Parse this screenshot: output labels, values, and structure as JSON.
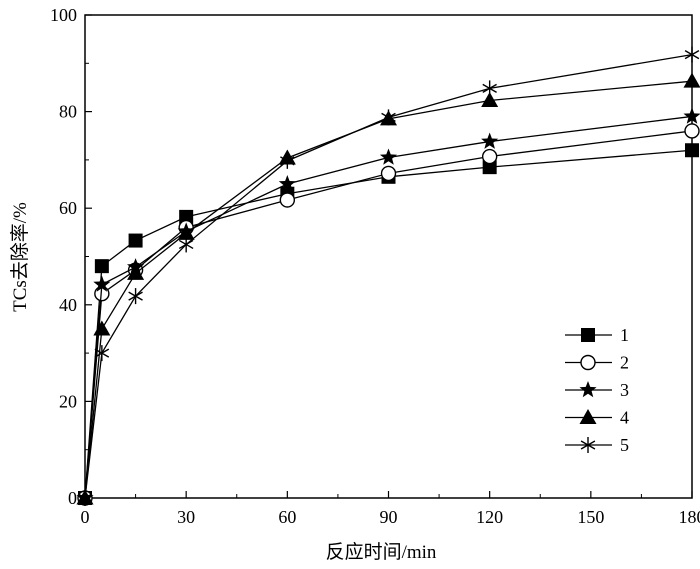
{
  "chart_data": {
    "type": "line",
    "xlabel": "反应时间/min",
    "ylabel": "TCs去除率/%",
    "xlim": [
      0,
      180
    ],
    "ylim": [
      0,
      100
    ],
    "xticks": [
      0,
      30,
      60,
      90,
      120,
      150,
      180
    ],
    "yticks": [
      0,
      20,
      40,
      60,
      80,
      100
    ],
    "grid": false,
    "legend_position": "lower-right",
    "series": [
      {
        "name": "1",
        "marker": "filled-square",
        "x": [
          0,
          5,
          15,
          30,
          60,
          90,
          120,
          180
        ],
        "y": [
          0,
          48,
          53.3,
          58.2,
          63,
          66.5,
          68.5,
          72
        ]
      },
      {
        "name": "2",
        "marker": "open-circle",
        "x": [
          0,
          5,
          15,
          30,
          60,
          90,
          120,
          180
        ],
        "y": [
          0,
          42.3,
          47.2,
          56,
          61.7,
          67.2,
          70.7,
          76
        ]
      },
      {
        "name": "3",
        "marker": "filled-star",
        "x": [
          0,
          5,
          15,
          30,
          60,
          90,
          120,
          180
        ],
        "y": [
          0,
          44.2,
          47.8,
          55.2,
          65,
          70.5,
          73.8,
          79
        ]
      },
      {
        "name": "4",
        "marker": "filled-triangle",
        "x": [
          0,
          5,
          15,
          30,
          60,
          90,
          120,
          180
        ],
        "y": [
          0,
          35,
          46.5,
          54.8,
          70.4,
          78.5,
          82.3,
          86.3
        ]
      },
      {
        "name": "5",
        "marker": "asterisk",
        "x": [
          0,
          5,
          15,
          30,
          60,
          90,
          120,
          180
        ],
        "y": [
          0,
          30,
          41.8,
          52.5,
          69.8,
          78.8,
          84.8,
          91.8
        ]
      }
    ]
  }
}
